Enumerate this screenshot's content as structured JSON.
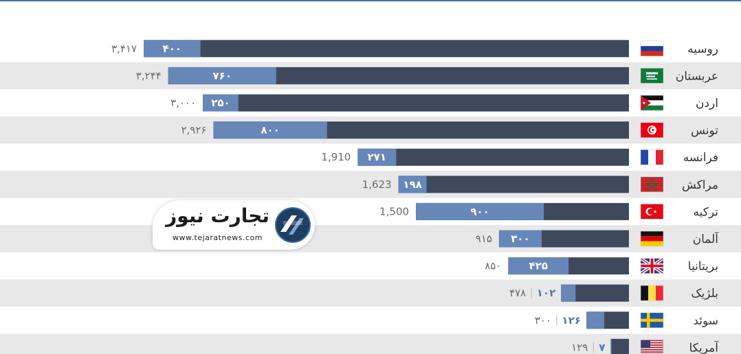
{
  "chart_data": {
    "type": "bar",
    "categories": [
      "روسیه",
      "عربستان",
      "اردن",
      "تونس",
      "فرانسه",
      "مراکش",
      "ترکیه",
      "آلمان",
      "بریتانیا",
      "بلژیک",
      "سوئد",
      "آمریکا"
    ],
    "series": [
      {
        "values": [
          3417,
          3244,
          3000,
          2926,
          1910,
          1623,
          1500,
          915,
          850,
          478,
          300,
          129
        ],
        "color": "#3e4a5c"
      },
      {
        "values": [
          400,
          760,
          250,
          800,
          271,
          198,
          900,
          300,
          425,
          102,
          126,
          7
        ],
        "color": "#6787b9"
      }
    ],
    "total_labels": [
      "۳,۴۱۷",
      "۳,۲۴۴",
      "۳,۰۰۰",
      "۲,۹۲۶",
      "1,910",
      "1,623",
      "1,500",
      "۹۱۵",
      "۸۵۰",
      "۴۷۸",
      "۳۰۰",
      "۱۲۹"
    ],
    "part_labels": [
      "۴۰۰",
      "۷۶۰",
      "۲۵۰",
      "۸۰۰",
      "۲۷۱",
      "۱۹۸",
      "۹۰۰",
      "۳۰۰",
      "۴۲۵",
      "۱۰۲",
      "۱۲۶",
      "۷"
    ],
    "flags": [
      "russia-flag-icon",
      "saudi-arabia-flag-icon",
      "jordan-flag-icon",
      "tunisia-flag-icon",
      "france-flag-icon",
      "morocco-flag-icon",
      "turkey-flag-icon",
      "germany-flag-icon",
      "uk-flag-icon",
      "belgium-flag-icon",
      "sweden-flag-icon",
      "usa-flag-icon"
    ],
    "colors": {
      "stripe": "#e8e8e8",
      "total": "#3e4a5c",
      "part": "#6787b9",
      "part_text_inside": "#ffffff",
      "part_text_outside": "#5577aa"
    },
    "xlim": [
      0,
      3417
    ]
  },
  "logo": {
    "name": "تجارت نیوز",
    "url": "www.tejaratnews.com"
  }
}
